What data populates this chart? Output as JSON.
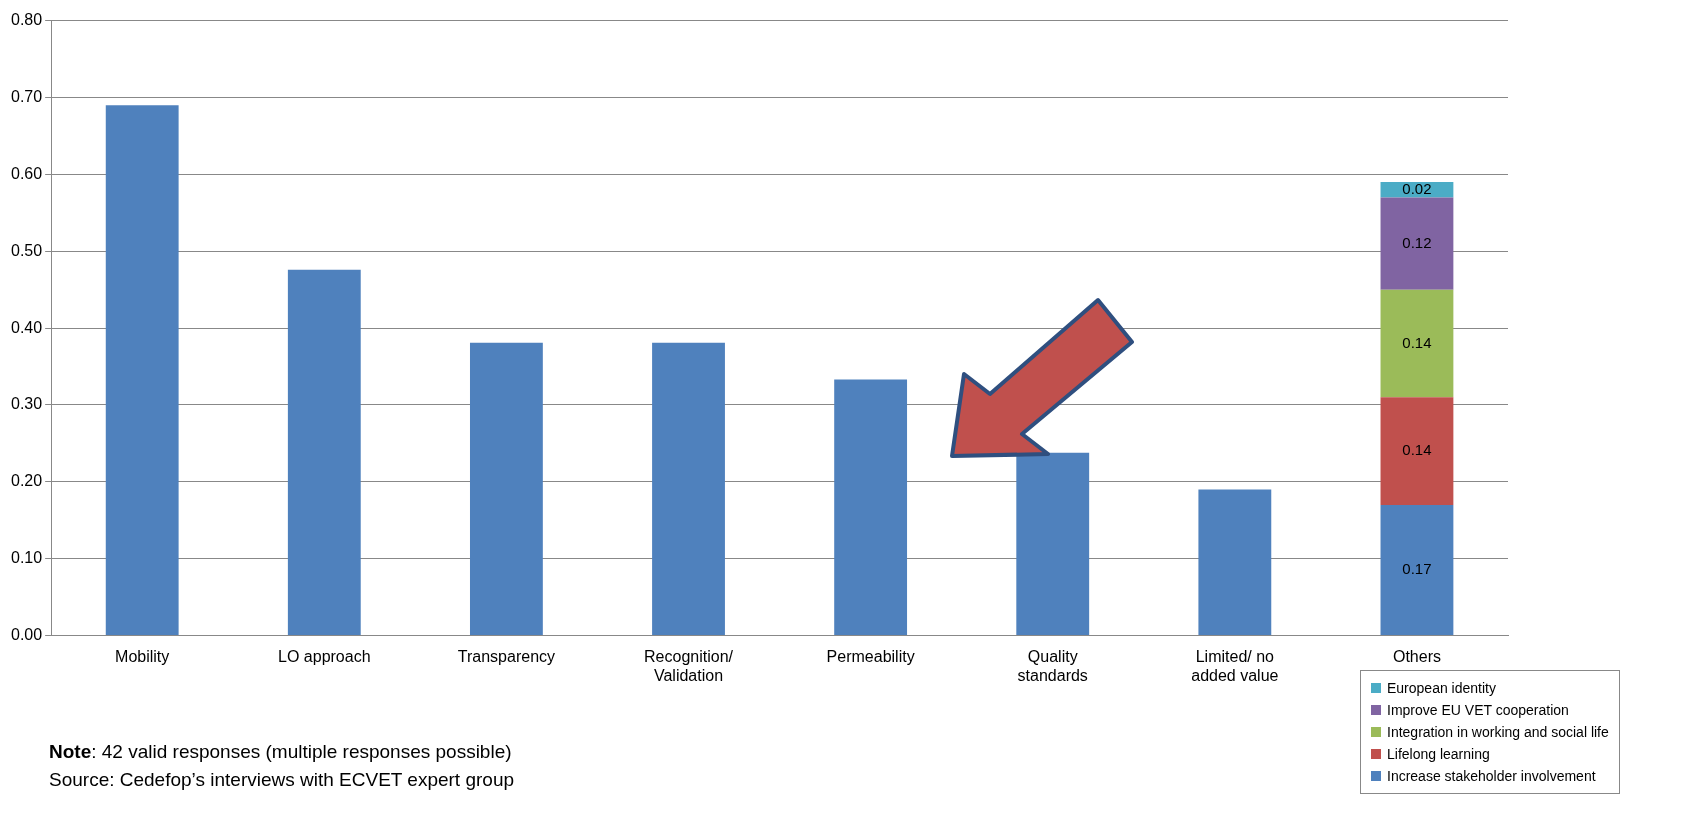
{
  "chart_data": {
    "type": "bar",
    "stacked": true,
    "categories": [
      "Mobility",
      "LO approach",
      "Transparency",
      "Recognition/ Validation",
      "Permeability",
      "Quality standards",
      "Limited/ no added value",
      "Others"
    ],
    "series": [
      {
        "color": "#4f81bd",
        "values": [
          0.69,
          0.476,
          0.381,
          0.381,
          0.333,
          0.238,
          0.19,
          null
        ]
      },
      {
        "name": "Increase stakeholder involvement",
        "color": "#4f81bd",
        "values": [
          null,
          null,
          null,
          null,
          null,
          null,
          null,
          0.17
        ],
        "value_labels": [
          null,
          null,
          null,
          null,
          null,
          null,
          null,
          "0.17"
        ]
      },
      {
        "name": "Lifelong learning",
        "color": "#c0504d",
        "values": [
          null,
          null,
          null,
          null,
          null,
          null,
          null,
          0.14
        ],
        "value_labels": [
          null,
          null,
          null,
          null,
          null,
          null,
          null,
          "0.14"
        ]
      },
      {
        "name": "Integration in working and social life",
        "color": "#9bbb59",
        "values": [
          null,
          null,
          null,
          null,
          null,
          null,
          null,
          0.14
        ],
        "value_labels": [
          null,
          null,
          null,
          null,
          null,
          null,
          null,
          "0.14"
        ]
      },
      {
        "name": "Improve EU VET cooperation",
        "color": "#8064a2",
        "values": [
          null,
          null,
          null,
          null,
          null,
          null,
          null,
          0.12
        ],
        "value_labels": [
          null,
          null,
          null,
          null,
          null,
          null,
          null,
          "0.12"
        ]
      },
      {
        "name": "European identity",
        "color": "#4bacc6",
        "values": [
          null,
          null,
          null,
          null,
          null,
          null,
          null,
          0.02
        ],
        "value_labels": [
          null,
          null,
          null,
          null,
          null,
          null,
          null,
          "0.02"
        ]
      }
    ],
    "ylim": [
      0,
      0.8
    ],
    "yticks": [
      {
        "value": 0,
        "label": "0.00"
      },
      {
        "value": 0.1,
        "label": "0.10"
      },
      {
        "value": 0.2,
        "label": "0.20"
      },
      {
        "value": 0.3,
        "label": "0.30"
      },
      {
        "value": 0.4,
        "label": "0.40"
      },
      {
        "value": 0.5,
        "label": "0.50"
      },
      {
        "value": 0.6,
        "label": "0.60"
      },
      {
        "value": 0.7,
        "label": "0.70"
      },
      {
        "value": 0.8,
        "label": "0.80"
      }
    ],
    "grid": "y",
    "legend": "bottom right",
    "annotations": [
      "Note: 42 valid responses (multiple responses possible)",
      "Source: Cedefop’s interviews with ECVET expert group"
    ]
  }
}
